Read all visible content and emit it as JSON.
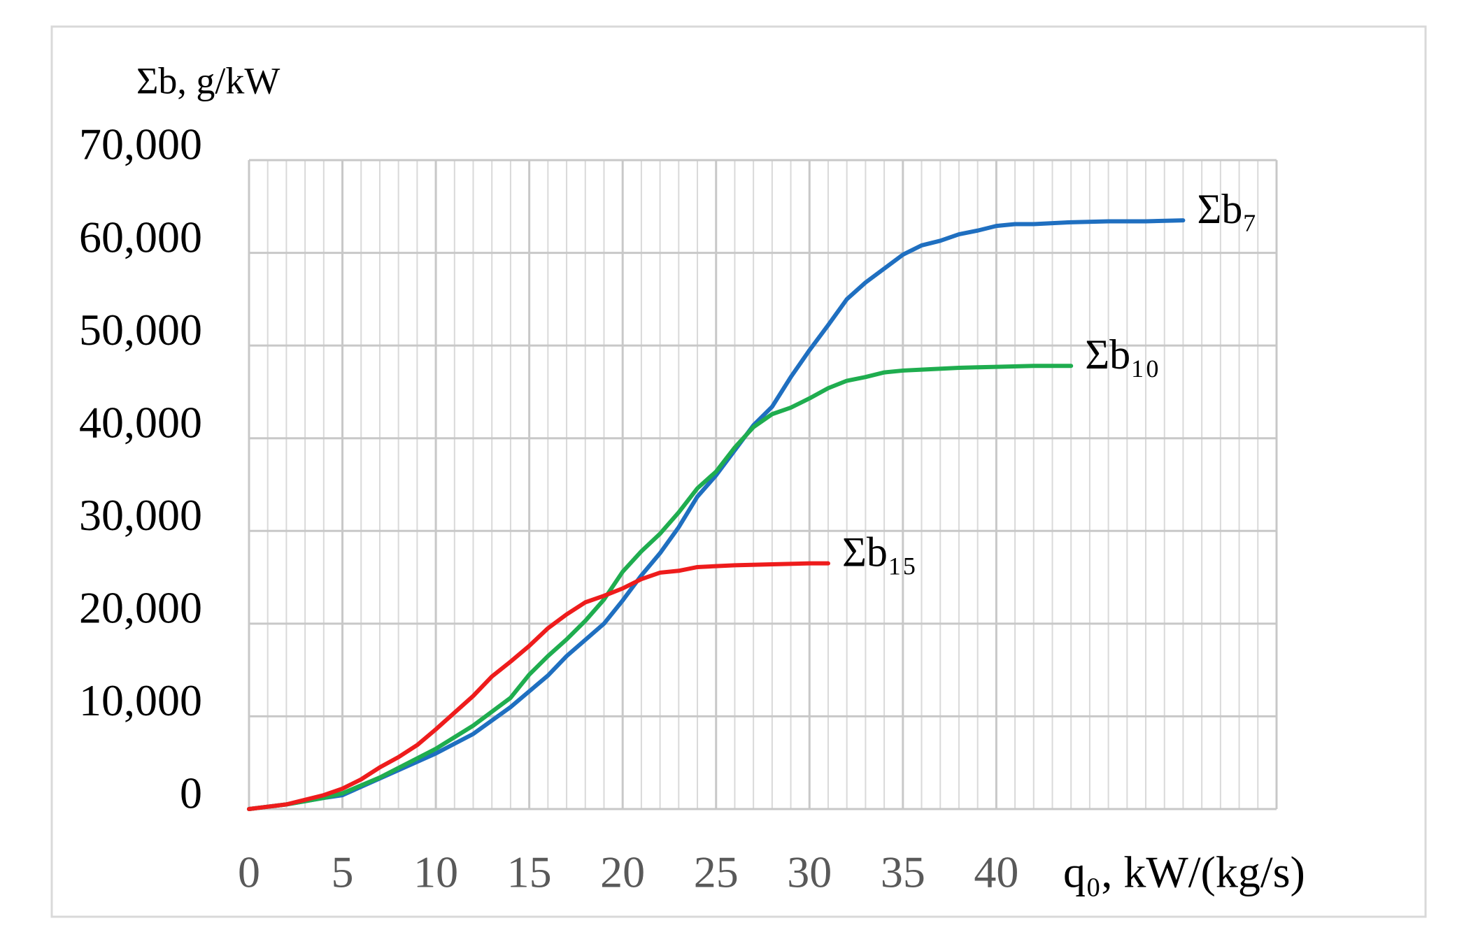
{
  "chart_data": {
    "type": "line",
    "y_label": "Σb, g/kW",
    "x_label": "q₀, kW/(kg/s)",
    "xlim": [
      0,
      55
    ],
    "xticks": [
      0,
      5,
      10,
      15,
      20,
      25,
      30,
      35,
      40
    ],
    "ylim": [
      0,
      70000
    ],
    "yticks": [
      0,
      {
        "value": 10000,
        "label": "10,000"
      },
      {
        "value": 20000,
        "label": "20,000"
      },
      {
        "value": 30000,
        "label": "30,000"
      },
      {
        "value": 40000,
        "label": "40,000"
      },
      {
        "value": 50000,
        "label": "50,000"
      },
      {
        "value": 60000,
        "label": "60,000"
      },
      {
        "value": 70000,
        "label": "70,000"
      }
    ],
    "grid": true,
    "series": [
      {
        "name": "Σb₇",
        "color": "#1f6fc0",
        "x": [
          0,
          2,
          4,
          5,
          7,
          10,
          12,
          14,
          15,
          16,
          17,
          19,
          20,
          21,
          22,
          23,
          24,
          25,
          26,
          27,
          28,
          29,
          30,
          31,
          32,
          33,
          34,
          35,
          36,
          37,
          38,
          39,
          40,
          41,
          42,
          44,
          46,
          48,
          50
        ],
        "values": [
          0,
          500,
          1200,
          1500,
          3300,
          6000,
          8100,
          11000,
          12700,
          14400,
          16500,
          20000,
          22500,
          25200,
          27600,
          30400,
          33700,
          36000,
          38700,
          41400,
          43400,
          46600,
          49500,
          52200,
          55000,
          56800,
          58300,
          59800,
          60800,
          61300,
          62000,
          62400,
          62900,
          63100,
          63100,
          63300,
          63400,
          63400,
          63500
        ]
      },
      {
        "name": "Σb₁₀",
        "color": "#1fad4f",
        "x": [
          0,
          2,
          4,
          5,
          7,
          10,
          12,
          14,
          15,
          16,
          17,
          18,
          19,
          20,
          21,
          22,
          23,
          24,
          25,
          26,
          27,
          28,
          29,
          30,
          31,
          32,
          33,
          34,
          35,
          36,
          38,
          40,
          42,
          44
        ],
        "values": [
          0,
          500,
          1200,
          1700,
          3400,
          6500,
          9000,
          12000,
          14500,
          16500,
          18300,
          20300,
          22600,
          25600,
          27800,
          29700,
          32000,
          34600,
          36400,
          39000,
          41200,
          42600,
          43300,
          44300,
          45400,
          46200,
          46600,
          47100,
          47300,
          47400,
          47600,
          47700,
          47800,
          47800
        ]
      },
      {
        "name": "Σb₁₅",
        "color": "#ee1c1c",
        "x": [
          0,
          2,
          4,
          5,
          6,
          7,
          8,
          9,
          10,
          11,
          12,
          13,
          14,
          15,
          16,
          17,
          18,
          19,
          20,
          21,
          22,
          23,
          24,
          25,
          26,
          28,
          30,
          31
        ],
        "values": [
          0,
          500,
          1500,
          2200,
          3200,
          4500,
          5600,
          6900,
          8600,
          10400,
          12200,
          14300,
          15900,
          17600,
          19500,
          21000,
          22300,
          23000,
          23800,
          24800,
          25500,
          25700,
          26100,
          26200,
          26300,
          26400,
          26500,
          26500
        ]
      }
    ]
  }
}
